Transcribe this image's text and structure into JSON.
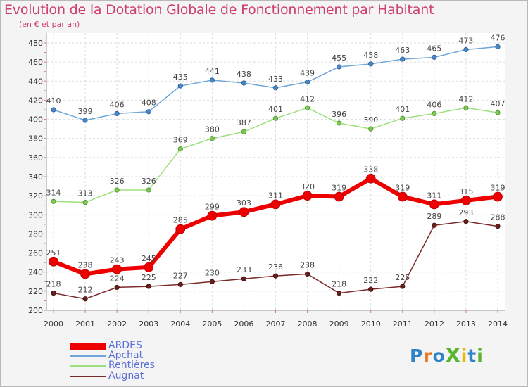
{
  "header": {
    "title": "Evolution de la Dotation Globale de Fonctionnement par Habitant",
    "subtitle": "(en € et par an)"
  },
  "logo": {
    "text": "ProXiti"
  },
  "chart_data": {
    "type": "line",
    "x": [
      "2000",
      "2001",
      "2002",
      "2003",
      "2004",
      "2005",
      "2006",
      "2007",
      "2008",
      "2009",
      "2010",
      "2011",
      "2012",
      "2013",
      "2014"
    ],
    "ylim": [
      200,
      480
    ],
    "yticks": [
      200,
      220,
      240,
      260,
      280,
      300,
      320,
      340,
      360,
      380,
      400,
      420,
      440,
      460,
      480
    ],
    "grid": true,
    "legend_position": "bottom-left",
    "series": [
      {
        "name": "ARDES",
        "color": "#ee0000",
        "values": [
          251,
          238,
          243,
          245,
          285,
          299,
          303,
          311,
          320,
          319,
          338,
          319,
          311,
          315,
          319
        ]
      },
      {
        "name": "Apchat",
        "color": "#70a6d8",
        "values": [
          410,
          399,
          406,
          408,
          435,
          441,
          438,
          433,
          439,
          455,
          458,
          463,
          465,
          473,
          476
        ]
      },
      {
        "name": "Rentières",
        "color": "#9ee07e",
        "values": [
          314,
          313,
          326,
          326,
          369,
          380,
          387,
          401,
          412,
          396,
          390,
          401,
          406,
          412,
          407
        ]
      },
      {
        "name": "Augnat",
        "color": "#7a2a2a",
        "values": [
          218,
          212,
          224,
          225,
          227,
          230,
          233,
          236,
          238,
          218,
          222,
          225,
          289,
          293,
          288
        ]
      }
    ]
  }
}
